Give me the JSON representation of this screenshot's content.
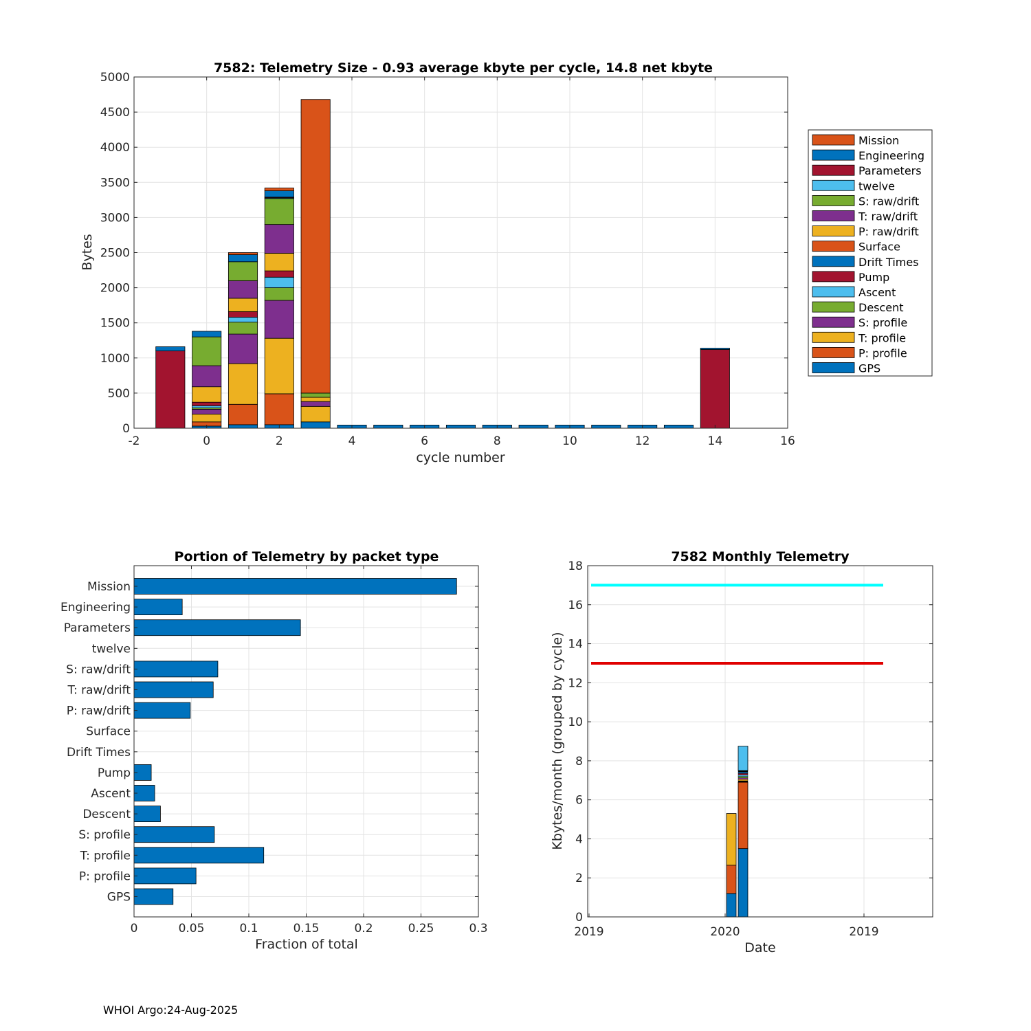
{
  "footer": "WHOI Argo:24-Aug-2025",
  "colors": {
    "Mission": "#D95319",
    "Engineering": "#0072BD",
    "Parameters": "#A2142F",
    "twelve": "#4DBEEE",
    "S: raw/drift": "#77AC30",
    "T: raw/drift": "#7E2F8E",
    "P: raw/drift": "#EDB120",
    "Surface": "#D95319",
    "Drift Times": "#0072BD",
    "Pump": "#A2142F",
    "Ascent": "#4DBEEE",
    "Descent": "#77AC30",
    "S: profile": "#7E2F8E",
    "T: profile": "#EDB120",
    "P: profile": "#D95319",
    "GPS": "#0072BD",
    "cyan_line": "#00FFFF",
    "red_line": "#E00000"
  },
  "chart_data": [
    {
      "type": "bar",
      "stacked": true,
      "title": "7582: Telemetry Size - 0.93 average kbyte per cycle,   14.8 net kbyte",
      "xlabel": "cycle number",
      "ylabel": "Bytes",
      "xlim": [
        -2,
        16
      ],
      "ylim": [
        0,
        5000
      ],
      "xticks": [
        "-2",
        "0",
        "2",
        "4",
        "6",
        "8",
        "10",
        "12",
        "14",
        "16"
      ],
      "yticks": [
        "0",
        "500",
        "1000",
        "1500",
        "2000",
        "2500",
        "3000",
        "3500",
        "4000",
        "4500",
        "5000"
      ],
      "legend_position": "right outside",
      "legend": [
        "Mission",
        "Engineering",
        "Parameters",
        "twelve",
        "S: raw/drift",
        "T: raw/drift",
        "P: raw/drift",
        "Surface",
        "Drift Times",
        "Pump",
        "Ascent",
        "Descent",
        "S: profile",
        "T: profile",
        "P: profile",
        "GPS"
      ],
      "stack_order": [
        "GPS",
        "P: profile",
        "T: profile",
        "S: profile",
        "Descent",
        "Ascent",
        "Pump",
        "Drift Times",
        "Surface",
        "P: raw/drift",
        "T: raw/drift",
        "S: raw/drift",
        "twelve",
        "Parameters",
        "Engineering",
        "Mission"
      ],
      "cycles": [
        {
          "x": -1,
          "segments": {
            "Parameters": 1100,
            "Engineering": 60
          }
        },
        {
          "x": 0,
          "segments": {
            "GPS": 30,
            "P: profile": 60,
            "T: profile": 110,
            "S: profile": 70,
            "Descent": 20,
            "Ascent": 30,
            "Pump": 50,
            "P: raw/drift": 220,
            "T: raw/drift": 300,
            "S: raw/drift": 410,
            "Engineering": 80
          }
        },
        {
          "x": 1,
          "segments": {
            "GPS": 50,
            "P: profile": 290,
            "T: profile": 580,
            "S: profile": 420,
            "Descent": 170,
            "Ascent": 70,
            "Pump": 80,
            "P: raw/drift": 190,
            "T: raw/drift": 250,
            "S: raw/drift": 270,
            "Engineering": 100,
            "Mission": 30
          }
        },
        {
          "x": 2,
          "segments": {
            "GPS": 50,
            "P: profile": 440,
            "T: profile": 790,
            "S: profile": 540,
            "Descent": 180,
            "Ascent": 150,
            "Pump": 90,
            "P: raw/drift": 250,
            "T: raw/drift": 410,
            "S: raw/drift": 370,
            "twelve": 10,
            "Parameters": 10,
            "Engineering": 90,
            "Mission": 40
          }
        },
        {
          "x": 3,
          "segments": {
            "GPS": 90,
            "T: profile": 220,
            "P: raw/drift": 60,
            "S: profile": 70,
            "S: raw/drift": 60,
            "Mission": 4180
          }
        },
        {
          "x": 4,
          "segments": {
            "Engineering": 45
          }
        },
        {
          "x": 5,
          "segments": {
            "Engineering": 45
          }
        },
        {
          "x": 6,
          "segments": {
            "Engineering": 45
          }
        },
        {
          "x": 7,
          "segments": {
            "Engineering": 45
          }
        },
        {
          "x": 8,
          "segments": {
            "Engineering": 45
          }
        },
        {
          "x": 9,
          "segments": {
            "Engineering": 45
          }
        },
        {
          "x": 10,
          "segments": {
            "Engineering": 45
          }
        },
        {
          "x": 11,
          "segments": {
            "Engineering": 45
          }
        },
        {
          "x": 12,
          "segments": {
            "Engineering": 45
          }
        },
        {
          "x": 13,
          "segments": {
            "Engineering": 45
          }
        },
        {
          "x": 14,
          "segments": {
            "Parameters": 1120,
            "Engineering": 20
          }
        }
      ]
    },
    {
      "type": "bar",
      "orientation": "horizontal",
      "title": "Portion of Telemetry by packet type",
      "xlabel": "Fraction of total",
      "xlim": [
        0,
        0.3
      ],
      "xticks": [
        "0",
        "0.05",
        "0.1",
        "0.15",
        "0.2",
        "0.25",
        "0.3"
      ],
      "categories": [
        "Mission",
        "Engineering",
        "Parameters",
        "twelve",
        "S: raw/drift",
        "T: raw/drift",
        "P: raw/drift",
        "Surface",
        "Drift Times",
        "Pump",
        "Ascent",
        "Descent",
        "S: profile",
        "T: profile",
        "P: profile",
        "GPS"
      ],
      "values": [
        0.281,
        0.042,
        0.145,
        0,
        0.073,
        0.069,
        0.049,
        0,
        0,
        0.015,
        0.018,
        0.023,
        0.07,
        0.113,
        0.054,
        0.034
      ]
    },
    {
      "type": "bar",
      "title": "7582 Monthly Telemetry",
      "xlabel": "Date",
      "ylabel": "Kbytes/month (grouped by cycle)",
      "ylim": [
        0,
        18
      ],
      "yticks": [
        "0",
        "2",
        "4",
        "6",
        "8",
        "10",
        "12",
        "14",
        "16",
        "18"
      ],
      "xticks": [
        "2019",
        "2020",
        "2019"
      ],
      "hlines": [
        {
          "y": 17,
          "color": "cyan"
        },
        {
          "y": 13,
          "color": "red"
        }
      ],
      "bars": [
        {
          "date": "2020-01",
          "segments": [
            {
              "packet": "Engineering",
              "value": 1.2
            },
            {
              "packet": "Mission",
              "value": 1.45
            },
            {
              "packet": "T: profile",
              "value": 2.65
            }
          ]
        },
        {
          "date": "2020-02",
          "segments": [
            {
              "packet": "Engineering",
              "value": 3.5
            },
            {
              "packet": "Mission",
              "value": 3.4
            },
            {
              "packet": "mixed",
              "value": 0.6
            },
            {
              "packet": "twelve",
              "value": 1.25
            }
          ]
        }
      ]
    }
  ]
}
